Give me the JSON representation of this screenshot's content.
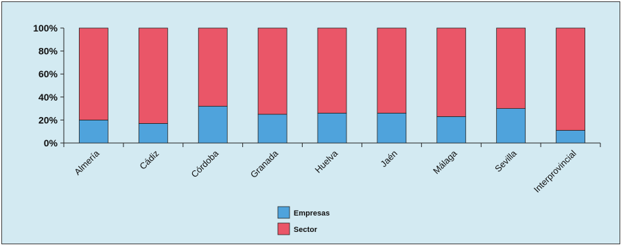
{
  "chart_data": {
    "type": "bar",
    "stacked": true,
    "categories": [
      "Almería",
      "Cádiz",
      "Córdoba",
      "Granada",
      "Huelva",
      "Jaén",
      "Málaga",
      "Sevilla",
      "Interprovincial"
    ],
    "series": [
      {
        "name": "Empresas",
        "color": "#4fa3dc",
        "values": [
          20,
          17,
          32,
          25,
          26,
          26,
          23,
          30,
          11
        ]
      },
      {
        "name": "Sector",
        "color": "#ea5668",
        "values": [
          80,
          83,
          68,
          75,
          74,
          74,
          77,
          70,
          89
        ]
      }
    ],
    "y_ticks": [
      "0%",
      "20%",
      "40%",
      "60%",
      "80%",
      "100%"
    ],
    "ylim": [
      0,
      100
    ],
    "grid": false,
    "legend_position": "bottom-center"
  }
}
